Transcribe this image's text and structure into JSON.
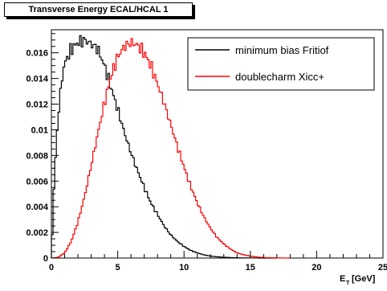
{
  "chart_data": {
    "type": "line",
    "title": "Transverse Energy ECAL/HCAL 1",
    "xlabel_main": "E",
    "xlabel_sub": "T",
    "xlabel_unit": "[GeV]",
    "ylabel": "",
    "xlim": [
      0,
      25
    ],
    "ylim": [
      0,
      0.0178
    ],
    "x_ticks": [
      0,
      5,
      10,
      15,
      20,
      25
    ],
    "y_ticks": [
      0,
      0.002,
      0.004,
      0.006,
      0.008,
      0.01,
      0.012,
      0.014,
      0.016
    ],
    "y_tick_labels": [
      "0",
      "0.002",
      "0.004",
      "0.006",
      "0.008",
      "0.01",
      "0.012",
      "0.014",
      "0.016"
    ],
    "grid": false,
    "legend_position": "top-right",
    "histogram_bin_width": 0.125,
    "series": [
      {
        "name": "minimum bias Fritiof",
        "color": "#000000",
        "x": [
          0.0,
          0.2,
          0.5,
          0.8,
          1.0,
          1.5,
          2.0,
          2.5,
          3.0,
          3.5,
          4.0,
          4.5,
          5.0,
          5.5,
          6.0,
          6.5,
          7.0,
          7.5,
          8.0,
          8.5,
          9.0,
          9.5,
          10.0,
          10.5,
          11.0,
          11.5,
          12.0,
          12.5,
          13.0,
          13.5,
          14.0,
          14.5,
          15.0,
          16.0,
          17.0
        ],
        "y": [
          0.0,
          0.0058,
          0.011,
          0.014,
          0.0152,
          0.0163,
          0.0168,
          0.017,
          0.0167,
          0.0163,
          0.015,
          0.0133,
          0.0116,
          0.0098,
          0.0082,
          0.0068,
          0.0055,
          0.0043,
          0.0034,
          0.0025,
          0.0018,
          0.0013,
          0.0009,
          0.0006,
          0.0004,
          0.00025,
          0.00015,
          0.0001,
          6e-05,
          4e-05,
          2e-05,
          1e-05,
          5e-06,
          0.0,
          0.0
        ]
      },
      {
        "name": "doublecharm Xicc+",
        "color": "#ff0000",
        "x": [
          0.0,
          0.5,
          1.0,
          1.5,
          2.0,
          2.5,
          3.0,
          3.5,
          4.0,
          4.5,
          5.0,
          5.5,
          6.0,
          6.5,
          7.0,
          7.5,
          8.0,
          8.5,
          9.0,
          9.5,
          10.0,
          10.5,
          11.0,
          11.5,
          12.0,
          12.5,
          13.0,
          13.5,
          14.0,
          14.5,
          15.0,
          15.5,
          16.0,
          17.0,
          18.0
        ],
        "y": [
          0.0,
          5e-05,
          0.0004,
          0.0013,
          0.0028,
          0.0048,
          0.0072,
          0.0097,
          0.0121,
          0.0142,
          0.0157,
          0.0165,
          0.0168,
          0.0166,
          0.016,
          0.015,
          0.0136,
          0.0121,
          0.0104,
          0.0087,
          0.0071,
          0.0056,
          0.0043,
          0.0032,
          0.0023,
          0.0016,
          0.0011,
          0.0007,
          0.0004,
          0.00025,
          0.00015,
          8e-05,
          4e-05,
          1e-05,
          0.0
        ]
      }
    ]
  }
}
